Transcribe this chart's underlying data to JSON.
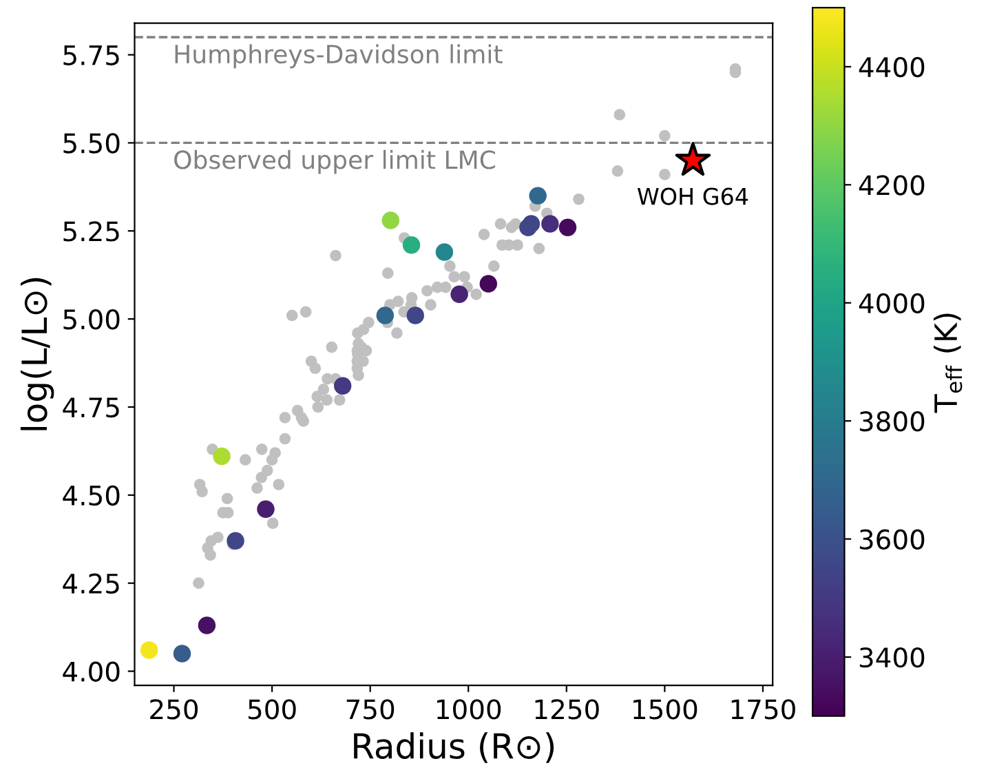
{
  "chart_data": {
    "type": "scatter",
    "xlabel": "Radius (R⊙)",
    "ylabel": "log(L/L⊙)",
    "clabel": "T$_{eff}$ (K)",
    "xlim": [
      150,
      1775
    ],
    "ylim": [
      3.96,
      5.84
    ],
    "xticks": [
      250,
      500,
      750,
      1000,
      1250,
      1500,
      1750
    ],
    "yticks": [
      {
        "value": 4,
        "label": "4.00"
      },
      {
        "value": 4.25,
        "label": "4.25"
      },
      {
        "value": 4.5,
        "label": "4.50"
      },
      {
        "value": 4.75,
        "label": "4.75"
      },
      {
        "value": 5,
        "label": "5.00"
      },
      {
        "value": 5.25,
        "label": "5.25"
      },
      {
        "value": 5.5,
        "label": "5.50"
      },
      {
        "value": 5.75,
        "label": "5.75"
      }
    ],
    "clim": [
      3300,
      4500
    ],
    "cticks": [
      3400,
      3600,
      3800,
      4000,
      4200,
      4400
    ],
    "grid": false,
    "legend": false,
    "ref_lines": [
      {
        "axis": "y",
        "value": 5.8,
        "label": "Humphreys-Davidson limit",
        "color": "#808080",
        "line_style": "dashed"
      },
      {
        "axis": "y",
        "value": 5.5,
        "label": "Observed upper limit LMC",
        "color": "#808080",
        "line_style": "dashed"
      }
    ],
    "annotations": [
      {
        "text": "WOH G64",
        "x": 1572,
        "y": 5.45
      }
    ],
    "series": [
      {
        "color": "#c0c0c0",
        "marker": "circle",
        "x": [
          1680,
          1680,
          1385,
          1500,
          1380,
          1500,
          1281,
          1180,
          1200,
          1170,
          662,
          837,
          795,
          551,
          586,
          1040,
          1082,
          1110,
          1120,
          1086,
          1103,
          1125,
          953,
          1065,
          964,
          990,
          997,
          942,
          921,
          895,
          1020,
          856,
          821,
          800,
          904,
          854,
          836,
          794,
          818,
          746,
          733,
          718,
          720,
          717,
          728,
          740,
          652,
          600,
          717,
          718,
          732,
          610,
          717,
          641,
          662,
          631,
          615,
          640,
          672,
          617,
          720,
          565,
          533,
          575,
          580,
          533,
          474,
          508,
          500,
          488,
          432,
          348,
          473,
          462,
          517,
          316,
          322,
          386,
          375,
          388,
          502,
          362,
          345,
          336,
          343,
          400,
          313
        ],
        "values": [
          5.7,
          5.71,
          5.58,
          5.52,
          5.42,
          5.41,
          5.34,
          5.2,
          5.3,
          5.32,
          5.18,
          5.23,
          5.13,
          5.01,
          5.02,
          5.24,
          5.27,
          5.26,
          5.27,
          5.21,
          5.21,
          5.21,
          5.15,
          5.15,
          5.12,
          5.12,
          5.09,
          5.09,
          5.09,
          5.08,
          5.07,
          5.06,
          5.05,
          5.04,
          5.04,
          5.04,
          5.02,
          4.99,
          4.96,
          4.99,
          4.97,
          4.96,
          4.93,
          4.91,
          4.92,
          4.91,
          4.92,
          4.88,
          4.88,
          4.9,
          4.88,
          4.86,
          4.86,
          4.83,
          4.83,
          4.8,
          4.78,
          4.77,
          4.77,
          4.75,
          4.84,
          4.74,
          4.72,
          4.72,
          4.71,
          4.66,
          4.63,
          4.62,
          4.6,
          4.57,
          4.6,
          4.63,
          4.55,
          4.52,
          4.53,
          4.53,
          4.51,
          4.49,
          4.45,
          4.45,
          4.42,
          4.38,
          4.37,
          4.35,
          4.33,
          4.36,
          4.25
        ]
      },
      {
        "marker": "circle",
        "x": [
          187,
          271,
          334,
          372,
          484,
          407,
          680,
          802,
          855,
          939,
          1051,
          977,
          788,
          865,
          1152,
          1160,
          1177,
          1208,
          1253
        ],
        "values": [
          4.06,
          4.05,
          4.13,
          4.61,
          4.46,
          4.37,
          4.81,
          5.28,
          5.21,
          5.19,
          5.1,
          5.07,
          5.01,
          5.01,
          5.26,
          5.27,
          5.35,
          5.27,
          5.26
        ],
        "cvalues": [
          4480,
          3650,
          3350,
          4350,
          3400,
          3550,
          3500,
          4300,
          4050,
          3850,
          3320,
          3420,
          3700,
          3550,
          3550,
          3550,
          3700,
          3450,
          3330
        ],
        "colors": [
          "#f4e61e",
          "#365d8d",
          "#471063",
          "#addc30",
          "#481f70",
          "#404688",
          "#443983",
          "#90d743",
          "#28ae80",
          "#24868e",
          "#46075a",
          "#482475",
          "#31688e",
          "#404688",
          "#404688",
          "#404688",
          "#31688e",
          "#472d7b",
          "#460a5d"
        ]
      },
      {
        "color": "#ff0000",
        "marker": "star",
        "x": [
          1572
        ],
        "values": [
          5.45
        ]
      }
    ]
  }
}
